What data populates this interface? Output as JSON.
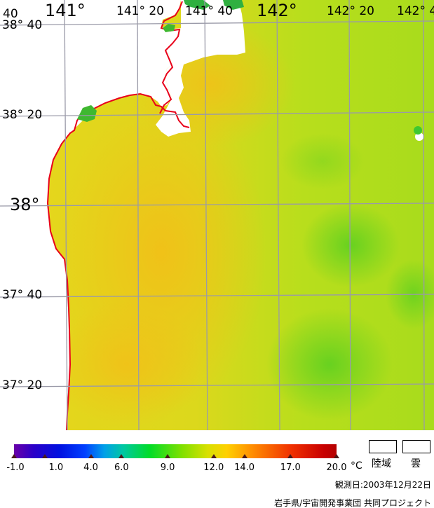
{
  "lon_labels": [
    {
      "text": "141°",
      "major": true
    },
    {
      "text": "141° 20",
      "major": false
    },
    {
      "text": "141° 40",
      "major": false
    },
    {
      "text": "142°",
      "major": true
    },
    {
      "text": "142° 20",
      "major": false
    },
    {
      "text": "142° 4",
      "major": false
    }
  ],
  "lat_labels": [
    {
      "text": "38° 40",
      "major": false
    },
    {
      "text": "38° 20",
      "major": false
    },
    {
      "text": "38°",
      "major": true
    },
    {
      "text": "37° 40",
      "major": false
    },
    {
      "text": "37° 20",
      "major": false
    }
  ],
  "corner_label": "40",
  "colorbar": {
    "ticks": [
      "-1.0",
      "1.0",
      "4.0",
      "6.0",
      "9.0",
      "12.0",
      "14.0",
      "17.0",
      "20.0"
    ],
    "unit": "°C"
  },
  "legend": {
    "land_label": "陸域",
    "cloud_label": "雲"
  },
  "observation_date": "観測日:2003年12月22日",
  "credit": "岩手県/宇宙開発事業団 共同プロジェクト",
  "colors": {
    "coast": "#e8001a",
    "grid": "#9a9aa8",
    "sea_warm": "#f2c21a",
    "sea_mid": "#d2e21a",
    "sea_cool": "#7ad820"
  }
}
